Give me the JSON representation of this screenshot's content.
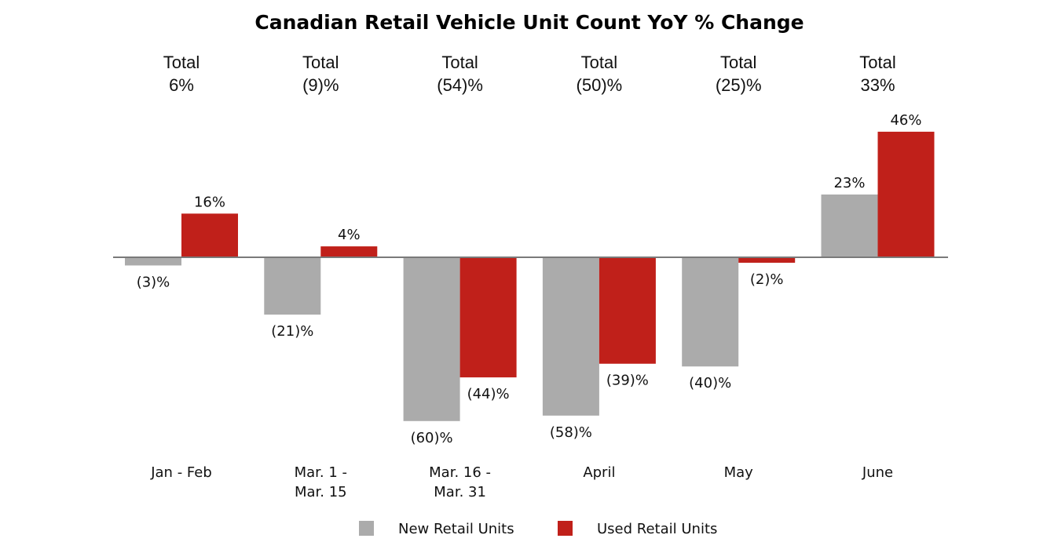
{
  "chart_data": {
    "type": "bar",
    "title": "Canadian Retail Vehicle Unit Count YoY % Change",
    "categories": [
      [
        "Jan - Feb"
      ],
      [
        "Mar. 1 -",
        "Mar. 15"
      ],
      [
        "Mar. 16 -",
        "Mar. 31"
      ],
      [
        "April"
      ],
      [
        "May"
      ],
      [
        "June"
      ]
    ],
    "totals_label": "Total",
    "totals": [
      "6%",
      "(9)%",
      "(54)%",
      "(50)%",
      "(25)%",
      "33%"
    ],
    "series": [
      {
        "name": "New Retail Units",
        "color": "#ababab",
        "values": [
          -3,
          -21,
          -60,
          -58,
          -40,
          23
        ],
        "labels": [
          "(3)%",
          "(21)%",
          "(60)%",
          "(58)%",
          "(40)%",
          "23%"
        ]
      },
      {
        "name": "Used Retail Units",
        "color": "#c0201a",
        "values": [
          16,
          4,
          -44,
          -39,
          -2,
          46
        ],
        "labels": [
          "16%",
          "4%",
          "(44)%",
          "(39)%",
          "(2)%",
          "46%"
        ]
      }
    ],
    "xlabel": "",
    "ylabel": "",
    "grid": false,
    "legend": "bottom-center"
  }
}
